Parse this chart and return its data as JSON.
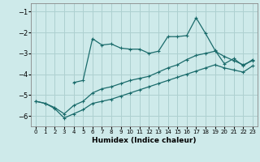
{
  "xlabel": "Humidex (Indice chaleur)",
  "background_color": "#ceeaea",
  "grid_color": "#aed0d0",
  "line_color": "#1a6b6b",
  "xlim": [
    -0.5,
    23.5
  ],
  "ylim": [
    -6.5,
    -0.6
  ],
  "xticks": [
    0,
    1,
    2,
    3,
    4,
    5,
    6,
    7,
    8,
    9,
    10,
    11,
    12,
    13,
    14,
    15,
    16,
    17,
    18,
    19,
    20,
    21,
    22,
    23
  ],
  "yticks": [
    -6,
    -5,
    -4,
    -3,
    -2,
    -1
  ],
  "line1_x": [
    4,
    5,
    6,
    7,
    8,
    9,
    10,
    11,
    12,
    13,
    14,
    15,
    16,
    17,
    18,
    19,
    20,
    21,
    22,
    23
  ],
  "line1_y": [
    -4.4,
    -4.3,
    -2.3,
    -2.6,
    -2.55,
    -2.75,
    -2.8,
    -2.8,
    -3.0,
    -2.9,
    -2.2,
    -2.2,
    -2.15,
    -1.3,
    -2.05,
    -2.85,
    -3.5,
    -3.25,
    -3.6,
    -3.3
  ],
  "line2_x": [
    0,
    1,
    2,
    3,
    4,
    5,
    6,
    7,
    8,
    9,
    10,
    11,
    12,
    13,
    14,
    15,
    16,
    17,
    18,
    19,
    20,
    21,
    22,
    23
  ],
  "line2_y": [
    -5.3,
    -5.4,
    -5.6,
    -5.9,
    -5.5,
    -5.3,
    -4.9,
    -4.7,
    -4.6,
    -4.45,
    -4.3,
    -4.2,
    -4.1,
    -3.9,
    -3.7,
    -3.55,
    -3.3,
    -3.1,
    -3.0,
    -2.9,
    -3.15,
    -3.35,
    -3.55,
    -3.35
  ],
  "line3_x": [
    0,
    1,
    2,
    3,
    4,
    5,
    6,
    7,
    8,
    9,
    10,
    11,
    12,
    13,
    14,
    15,
    16,
    17,
    18,
    19,
    20,
    21,
    22,
    23
  ],
  "line3_y": [
    -5.3,
    -5.4,
    -5.65,
    -6.1,
    -5.9,
    -5.7,
    -5.4,
    -5.3,
    -5.2,
    -5.05,
    -4.9,
    -4.75,
    -4.6,
    -4.45,
    -4.3,
    -4.15,
    -4.0,
    -3.85,
    -3.7,
    -3.55,
    -3.7,
    -3.8,
    -3.9,
    -3.6
  ]
}
